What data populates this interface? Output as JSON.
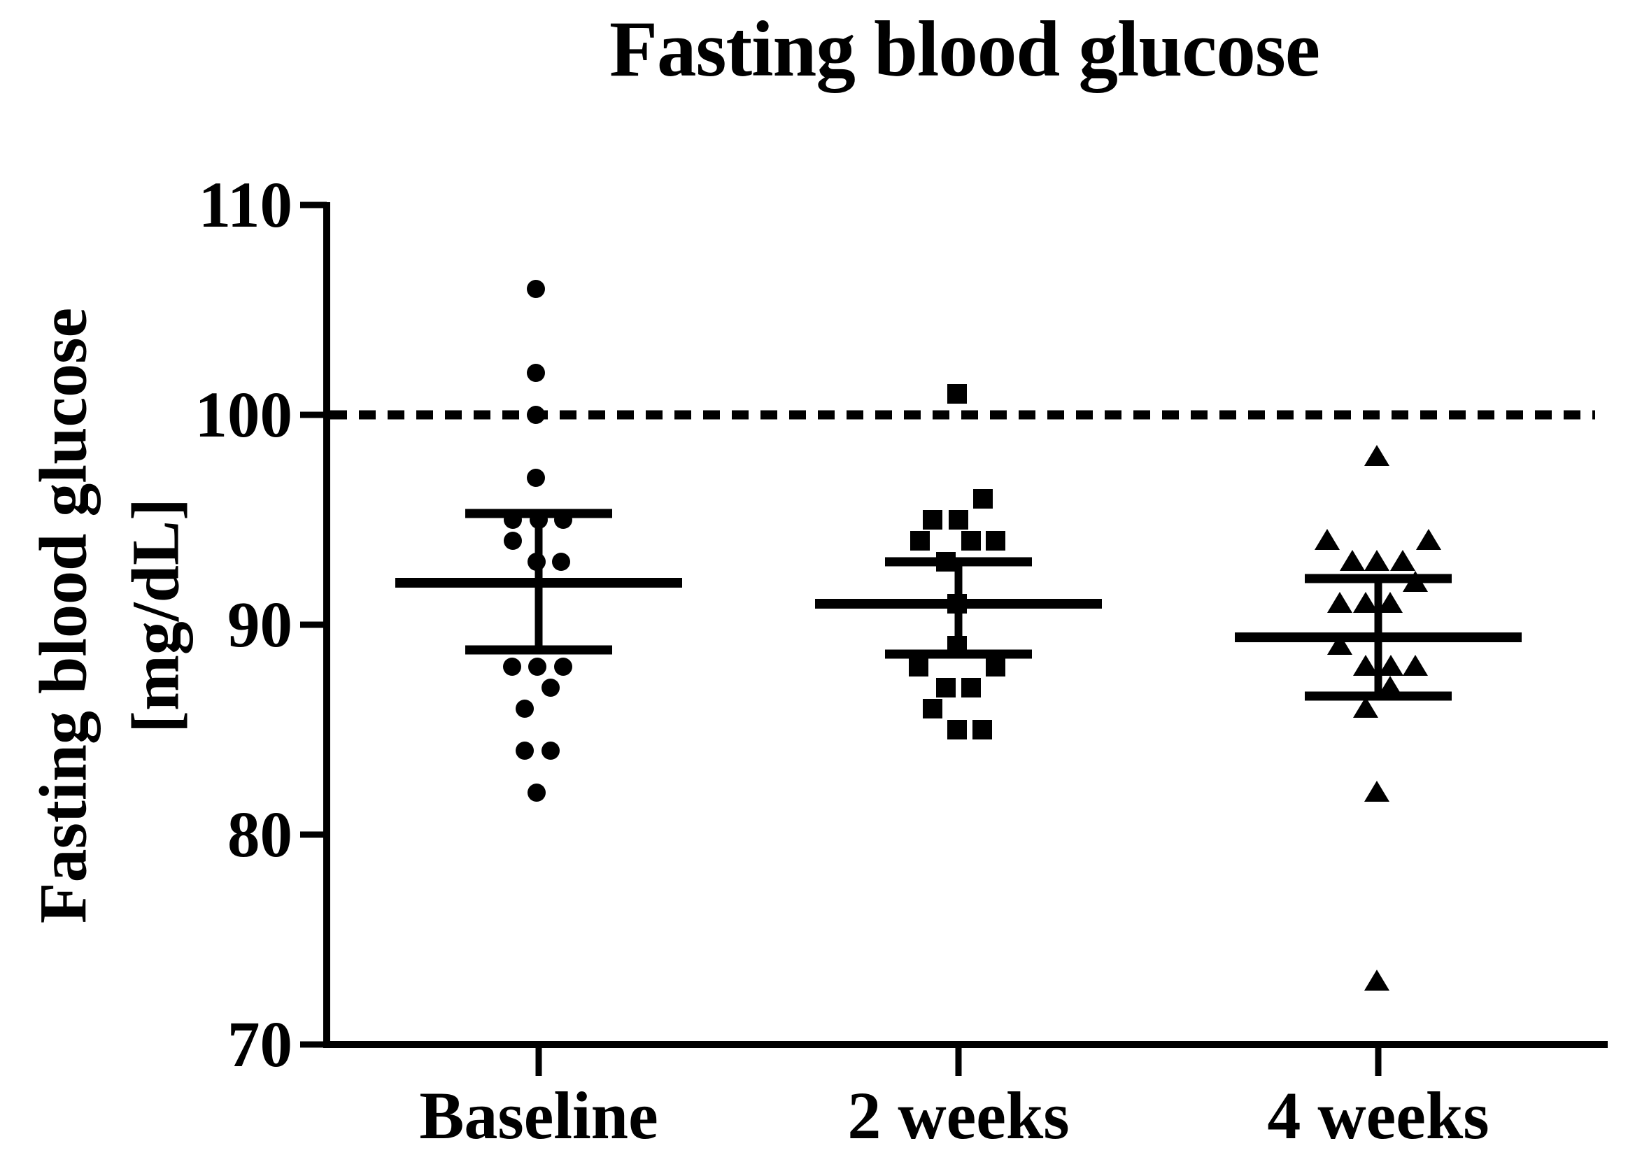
{
  "figure": {
    "title": "Fasting blood glucose",
    "y_axis_label_line1": "Fasting blood glucose",
    "y_axis_label_line2": "[mg/dL]"
  },
  "chart_data": {
    "type": "scatter",
    "title": "Fasting blood glucose",
    "xlabel": "",
    "ylabel": "Fasting blood glucose [mg/dL]",
    "ylim": [
      70,
      110
    ],
    "yticks": [
      110,
      100,
      90,
      80,
      70
    ],
    "categories": [
      "Baseline",
      "2 weeks",
      "4 weeks"
    ],
    "grid": false,
    "legend": "none",
    "marker_color": "#000000",
    "reference_line": {
      "value": 100,
      "style": "dashed"
    },
    "series": [
      {
        "name": "Baseline",
        "marker": "circle",
        "values": [
          106,
          102,
          100,
          97,
          95,
          95,
          95,
          94,
          93,
          93,
          88,
          88,
          88,
          87,
          86,
          84,
          84,
          82
        ],
        "points": [
          [
            106,
            -4
          ],
          [
            102,
            -4
          ],
          [
            100,
            -4
          ],
          [
            97,
            -4
          ],
          [
            95,
            -37
          ],
          [
            95,
            0
          ],
          [
            95,
            35
          ],
          [
            94,
            -37
          ],
          [
            93,
            -3
          ],
          [
            93,
            32
          ],
          [
            88,
            -38
          ],
          [
            88,
            -2
          ],
          [
            88,
            35
          ],
          [
            87,
            17
          ],
          [
            86,
            -20
          ],
          [
            84,
            -20
          ],
          [
            84,
            17
          ],
          [
            82,
            -3
          ]
        ],
        "mean": 92.0,
        "error_upper": 95.3,
        "error_lower": 88.8
      },
      {
        "name": "2 weeks",
        "marker": "square",
        "values": [
          101,
          96,
          95,
          95,
          94,
          94,
          94,
          93,
          91,
          89,
          88,
          88,
          87,
          87,
          86,
          85,
          85
        ],
        "points": [
          [
            101,
            -2
          ],
          [
            96,
            35
          ],
          [
            95,
            -37
          ],
          [
            95,
            0
          ],
          [
            94,
            -55
          ],
          [
            94,
            18
          ],
          [
            94,
            53
          ],
          [
            93,
            -18
          ],
          [
            91,
            -2
          ],
          [
            89,
            -2
          ],
          [
            88,
            -57
          ],
          [
            88,
            53
          ],
          [
            87,
            -18
          ],
          [
            87,
            18
          ],
          [
            86,
            -37
          ],
          [
            85,
            -2
          ],
          [
            85,
            34
          ]
        ],
        "mean": 91.0,
        "error_upper": 93.0,
        "error_lower": 88.6
      },
      {
        "name": "4 weeks",
        "marker": "triangle",
        "values": [
          98,
          94,
          94,
          93,
          93,
          93,
          92,
          91,
          91,
          91,
          89,
          88,
          88,
          88,
          87,
          86,
          82,
          73
        ],
        "points": [
          [
            98,
            -2
          ],
          [
            94,
            -73
          ],
          [
            94,
            72
          ],
          [
            93,
            -37
          ],
          [
            93,
            -2
          ],
          [
            93,
            35
          ],
          [
            92,
            53
          ],
          [
            91,
            -55
          ],
          [
            91,
            -18
          ],
          [
            91,
            17
          ],
          [
            89,
            -55
          ],
          [
            88,
            -18
          ],
          [
            88,
            18
          ],
          [
            88,
            53
          ],
          [
            87,
            17
          ],
          [
            86,
            -18
          ],
          [
            82,
            -2
          ],
          [
            73,
            -2
          ]
        ],
        "mean": 89.4,
        "error_upper": 92.2,
        "error_lower": 86.6
      }
    ]
  }
}
